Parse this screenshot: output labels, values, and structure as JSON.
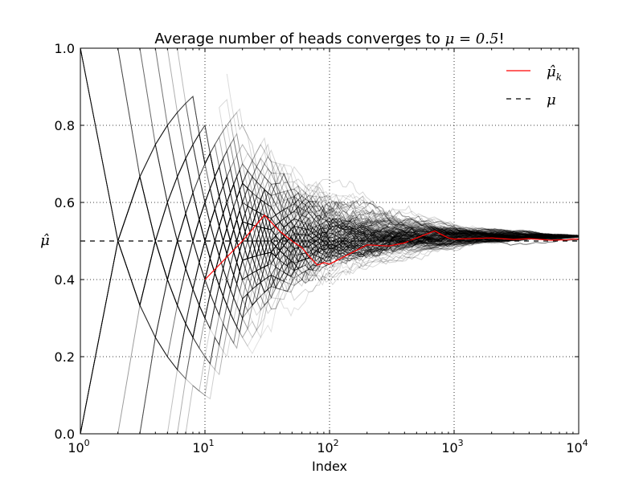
{
  "chart_data": {
    "type": "line",
    "title": "Average number of heads converges to",
    "title_math": "μ = 0.5",
    "title_suffix": "!",
    "xlabel": "Index",
    "ylabel": "μ̂",
    "xscale": "log",
    "xlim": [
      1,
      10000
    ],
    "ylim": [
      0.0,
      1.0
    ],
    "xticks": [
      {
        "value": 1,
        "base": "10",
        "exp": "0"
      },
      {
        "value": 10,
        "base": "10",
        "exp": "1"
      },
      {
        "value": 100,
        "base": "10",
        "exp": "2"
      },
      {
        "value": 1000,
        "base": "10",
        "exp": "3"
      },
      {
        "value": 10000,
        "base": "10",
        "exp": "4"
      }
    ],
    "yticks": [
      {
        "value": 0.0,
        "label": "0.0"
      },
      {
        "value": 0.2,
        "label": "0.2"
      },
      {
        "value": 0.4,
        "label": "0.4"
      },
      {
        "value": 0.6,
        "label": "0.6"
      },
      {
        "value": 0.8,
        "label": "0.8"
      },
      {
        "value": 1.0,
        "label": "1.0"
      }
    ],
    "grid": true,
    "legend": {
      "placement": "top-right",
      "entries": [
        {
          "label": "μ̂",
          "sub": "k",
          "color": "#ff0000",
          "style": "solid"
        },
        {
          "label": "μ",
          "color": "#000000",
          "style": "dashed"
        }
      ]
    },
    "series": [
      {
        "color": "#ff0000",
        "x": [
          10,
          20,
          30,
          40,
          50,
          60,
          70,
          80,
          90,
          100,
          200,
          300,
          400,
          500,
          600,
          700,
          800,
          900,
          1000,
          2000,
          3000,
          4000,
          5000,
          6000,
          7000,
          8000,
          9000,
          10000
        ],
        "y": [
          0.4,
          0.5,
          0.567,
          0.525,
          0.5,
          0.483,
          0.457,
          0.4375,
          0.444,
          0.44,
          0.49,
          0.487,
          0.495,
          0.508,
          0.518,
          0.526,
          0.516,
          0.508,
          0.505,
          0.508,
          0.504,
          0.506,
          0.504,
          0.502,
          0.503,
          0.503,
          0.505,
          0.505
        ]
      },
      {
        "color": "#000000",
        "x": [
          1,
          10000
        ],
        "y": [
          0.5,
          0.5
        ]
      }
    ],
    "background_paths": {
      "count": 200,
      "color": "#000000",
      "description_only": false
    }
  }
}
